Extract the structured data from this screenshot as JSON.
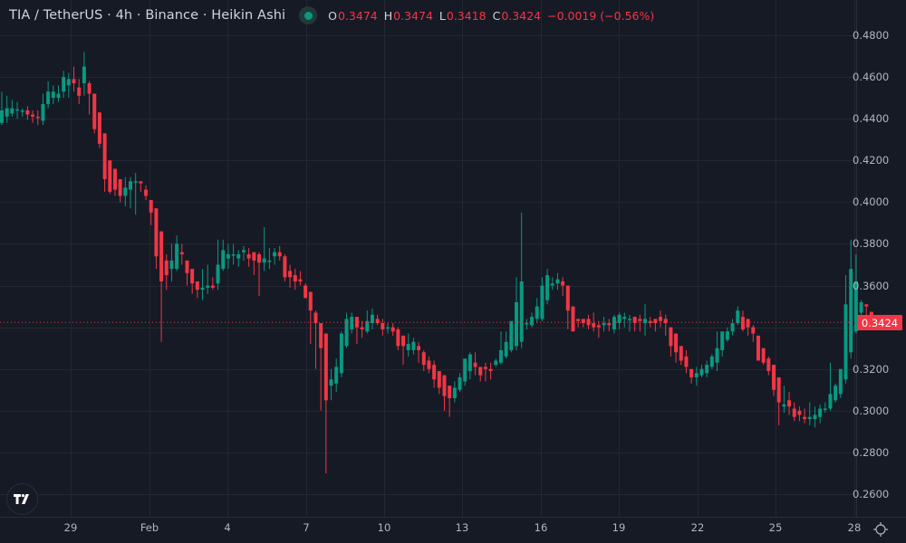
{
  "header": {
    "symbol_title": "TIA / TetherUS · 4h · Binance · Heikin Ashi",
    "status_icon": "market-open-dot-icon",
    "ohlc": {
      "open_label": "O",
      "open": "0.3474",
      "high_label": "H",
      "high": "0.3474",
      "low_label": "L",
      "low": "0.3418",
      "close_label": "C",
      "close": "0.3424",
      "change": "−0.0019 (−0.56%)"
    }
  },
  "price_axis": {
    "ticks": [
      "0.4800",
      "0.4600",
      "0.4400",
      "0.4200",
      "0.4000",
      "0.3800",
      "0.3600",
      "0.3200",
      "0.3000",
      "0.2800",
      "0.2600"
    ],
    "current_price_label": "0.3424"
  },
  "time_axis": {
    "ticks": [
      "29",
      "Feb",
      "4",
      "7",
      "10",
      "13",
      "16",
      "19",
      "22",
      "25",
      "28"
    ]
  },
  "footer": {
    "logo": "tradingview-logo-icon",
    "settings_icon": "gear-icon"
  },
  "colors": {
    "background": "#161a25",
    "grid": "#232733",
    "up": "#089981",
    "down": "#f23645",
    "text": "#d1d4dc",
    "axis_text": "#b2b5be"
  },
  "chart_data": {
    "type": "candlestick",
    "title": "TIA / TetherUS · 4h · Binance · Heikin Ashi",
    "xlabel": "",
    "ylabel": "",
    "ylim": [
      0.25,
      0.49
    ],
    "grid": true,
    "legend_position": "top-left",
    "x_ticks": [
      "29",
      "Feb",
      "4",
      "7",
      "10",
      "13",
      "16",
      "19",
      "22",
      "25",
      "28"
    ],
    "y_ticks": [
      0.26,
      0.28,
      0.3,
      0.32,
      0.34,
      0.36,
      0.38,
      0.4,
      0.42,
      0.44,
      0.46,
      0.48
    ],
    "last": {
      "open": 0.3474,
      "high": 0.3474,
      "low": 0.3418,
      "close": 0.3424,
      "change": -0.0019,
      "change_pct": -0.56
    },
    "candles_note": "Approximate OHLC read from the screenshot, not actual data: [open, high, low, close] per 4h bar, left to right. Per-bar values are estimates and only reproduce the overall price shape.",
    "candles_approx": [
      [
        0.438,
        0.453,
        0.437,
        0.444
      ],
      [
        0.441,
        0.451,
        0.438,
        0.445
      ],
      [
        0.4425,
        0.449,
        0.441,
        0.445
      ],
      [
        0.444,
        0.448,
        0.44,
        0.4445
      ],
      [
        0.444,
        0.445,
        0.441,
        0.444
      ],
      [
        0.444,
        0.446,
        0.4395,
        0.442
      ],
      [
        0.442,
        0.444,
        0.438,
        0.441
      ],
      [
        0.441,
        0.444,
        0.437,
        0.4405
      ],
      [
        0.439,
        0.452,
        0.437,
        0.447
      ],
      [
        0.447,
        0.458,
        0.445,
        0.453
      ],
      [
        0.45,
        0.456,
        0.447,
        0.453
      ],
      [
        0.45,
        0.456,
        0.448,
        0.452
      ],
      [
        0.453,
        0.463,
        0.45,
        0.46
      ],
      [
        0.456,
        0.462,
        0.45,
        0.459
      ],
      [
        0.459,
        0.465,
        0.453,
        0.457
      ],
      [
        0.455,
        0.459,
        0.447,
        0.451
      ],
      [
        0.457,
        0.472,
        0.451,
        0.465
      ],
      [
        0.457,
        0.458,
        0.442,
        0.452
      ],
      [
        0.452,
        0.452,
        0.433,
        0.435
      ],
      [
        0.443,
        0.443,
        0.426,
        0.428
      ],
      [
        0.433,
        0.433,
        0.405,
        0.411
      ],
      [
        0.42,
        0.42,
        0.404,
        0.405
      ],
      [
        0.416,
        0.416,
        0.403,
        0.406
      ],
      [
        0.411,
        0.411,
        0.4,
        0.403
      ],
      [
        0.403,
        0.412,
        0.398,
        0.407
      ],
      [
        0.406,
        0.412,
        0.397,
        0.41
      ],
      [
        0.41,
        0.414,
        0.394,
        0.41
      ],
      [
        0.41,
        0.41,
        0.405,
        0.409
      ],
      [
        0.406,
        0.408,
        0.401,
        0.403
      ],
      [
        0.401,
        0.401,
        0.389,
        0.395
      ],
      [
        0.397,
        0.397,
        0.368,
        0.374
      ],
      [
        0.386,
        0.386,
        0.333,
        0.362
      ],
      [
        0.372,
        0.375,
        0.358,
        0.365
      ],
      [
        0.368,
        0.38,
        0.362,
        0.372
      ],
      [
        0.368,
        0.384,
        0.367,
        0.38
      ],
      [
        0.376,
        0.38,
        0.37,
        0.375
      ],
      [
        0.372,
        0.372,
        0.36,
        0.366
      ],
      [
        0.368,
        0.368,
        0.356,
        0.361
      ],
      [
        0.362,
        0.362,
        0.354,
        0.358
      ],
      [
        0.358,
        0.368,
        0.353,
        0.359
      ],
      [
        0.359,
        0.37,
        0.356,
        0.36
      ],
      [
        0.36,
        0.364,
        0.358,
        0.359
      ],
      [
        0.361,
        0.382,
        0.358,
        0.37
      ],
      [
        0.368,
        0.382,
        0.367,
        0.377
      ],
      [
        0.373,
        0.38,
        0.368,
        0.375
      ],
      [
        0.375,
        0.38,
        0.37,
        0.375
      ],
      [
        0.373,
        0.377,
        0.369,
        0.375
      ],
      [
        0.376,
        0.379,
        0.372,
        0.377
      ],
      [
        0.375,
        0.378,
        0.369,
        0.373
      ],
      [
        0.376,
        0.376,
        0.365,
        0.372
      ],
      [
        0.375,
        0.376,
        0.355,
        0.371
      ],
      [
        0.371,
        0.388,
        0.367,
        0.373
      ],
      [
        0.372,
        0.378,
        0.368,
        0.372
      ],
      [
        0.374,
        0.378,
        0.37,
        0.376
      ],
      [
        0.376,
        0.379,
        0.372,
        0.374
      ],
      [
        0.374,
        0.375,
        0.362,
        0.364
      ],
      [
        0.367,
        0.37,
        0.359,
        0.364
      ],
      [
        0.365,
        0.368,
        0.358,
        0.362
      ],
      [
        0.363,
        0.367,
        0.36,
        0.362
      ],
      [
        0.36,
        0.361,
        0.354,
        0.354
      ],
      [
        0.357,
        0.357,
        0.332,
        0.348
      ],
      [
        0.347,
        0.348,
        0.32,
        0.342
      ],
      [
        0.342,
        0.342,
        0.3,
        0.33
      ],
      [
        0.337,
        0.337,
        0.27,
        0.305
      ],
      [
        0.312,
        0.32,
        0.305,
        0.315
      ],
      [
        0.313,
        0.325,
        0.309,
        0.321
      ],
      [
        0.318,
        0.338,
        0.316,
        0.337
      ],
      [
        0.331,
        0.347,
        0.33,
        0.344
      ],
      [
        0.339,
        0.347,
        0.337,
        0.345
      ],
      [
        0.345,
        0.345,
        0.332,
        0.34
      ],
      [
        0.34,
        0.343,
        0.335,
        0.339
      ],
      [
        0.338,
        0.348,
        0.337,
        0.343
      ],
      [
        0.342,
        0.349,
        0.339,
        0.346
      ],
      [
        0.344,
        0.346,
        0.341,
        0.342
      ],
      [
        0.342,
        0.344,
        0.336,
        0.339
      ],
      [
        0.34,
        0.342,
        0.337,
        0.34
      ],
      [
        0.34,
        0.342,
        0.336,
        0.338
      ],
      [
        0.339,
        0.34,
        0.329,
        0.331
      ],
      [
        0.336,
        0.336,
        0.322,
        0.331
      ],
      [
        0.329,
        0.337,
        0.326,
        0.332
      ],
      [
        0.329,
        0.335,
        0.327,
        0.333
      ],
      [
        0.331,
        0.333,
        0.323,
        0.329
      ],
      [
        0.328,
        0.329,
        0.319,
        0.322
      ],
      [
        0.324,
        0.326,
        0.318,
        0.32
      ],
      [
        0.322,
        0.324,
        0.311,
        0.315
      ],
      [
        0.319,
        0.319,
        0.308,
        0.311
      ],
      [
        0.317,
        0.317,
        0.3,
        0.307
      ],
      [
        0.312,
        0.312,
        0.297,
        0.306
      ],
      [
        0.306,
        0.314,
        0.304,
        0.311
      ],
      [
        0.31,
        0.318,
        0.309,
        0.316
      ],
      [
        0.314,
        0.324,
        0.312,
        0.325
      ],
      [
        0.319,
        0.328,
        0.315,
        0.327
      ],
      [
        0.323,
        0.328,
        0.317,
        0.321
      ],
      [
        0.321,
        0.321,
        0.314,
        0.317
      ],
      [
        0.321,
        0.323,
        0.314,
        0.32
      ],
      [
        0.32,
        0.323,
        0.315,
        0.319
      ],
      [
        0.322,
        0.325,
        0.321,
        0.324
      ],
      [
        0.323,
        0.338,
        0.322,
        0.329
      ],
      [
        0.326,
        0.338,
        0.325,
        0.333
      ],
      [
        0.329,
        0.342,
        0.328,
        0.343
      ],
      [
        0.331,
        0.364,
        0.329,
        0.352
      ],
      [
        0.333,
        0.395,
        0.33,
        0.362
      ],
      [
        0.342,
        0.344,
        0.339,
        0.342
      ],
      [
        0.341,
        0.347,
        0.34,
        0.345
      ],
      [
        0.344,
        0.354,
        0.342,
        0.35
      ],
      [
        0.344,
        0.364,
        0.343,
        0.36
      ],
      [
        0.353,
        0.368,
        0.351,
        0.365
      ],
      [
        0.36,
        0.364,
        0.358,
        0.361
      ],
      [
        0.361,
        0.366,
        0.358,
        0.363
      ],
      [
        0.362,
        0.364,
        0.355,
        0.36
      ],
      [
        0.36,
        0.36,
        0.339,
        0.348
      ],
      [
        0.35,
        0.35,
        0.338,
        0.338
      ],
      [
        0.344,
        0.344,
        0.34,
        0.343
      ],
      [
        0.344,
        0.344,
        0.34,
        0.342
      ],
      [
        0.344,
        0.346,
        0.339,
        0.341
      ],
      [
        0.342,
        0.347,
        0.338,
        0.34
      ],
      [
        0.341,
        0.343,
        0.335,
        0.34
      ],
      [
        0.341,
        0.345,
        0.338,
        0.342
      ],
      [
        0.342,
        0.344,
        0.338,
        0.341
      ],
      [
        0.339,
        0.346,
        0.337,
        0.345
      ],
      [
        0.342,
        0.347,
        0.339,
        0.346
      ],
      [
        0.344,
        0.347,
        0.34,
        0.345
      ],
      [
        0.344,
        0.346,
        0.338,
        0.344
      ],
      [
        0.345,
        0.345,
        0.338,
        0.342
      ],
      [
        0.344,
        0.346,
        0.338,
        0.343
      ],
      [
        0.342,
        0.351,
        0.336,
        0.344
      ],
      [
        0.343,
        0.345,
        0.34,
        0.342
      ],
      [
        0.344,
        0.344,
        0.338,
        0.342
      ],
      [
        0.345,
        0.348,
        0.34,
        0.343
      ],
      [
        0.344,
        0.346,
        0.336,
        0.342
      ],
      [
        0.34,
        0.34,
        0.326,
        0.331
      ],
      [
        0.337,
        0.337,
        0.323,
        0.328
      ],
      [
        0.331,
        0.331,
        0.322,
        0.324
      ],
      [
        0.326,
        0.329,
        0.318,
        0.321
      ],
      [
        0.32,
        0.32,
        0.313,
        0.316
      ],
      [
        0.316,
        0.321,
        0.312,
        0.318
      ],
      [
        0.317,
        0.322,
        0.316,
        0.32
      ],
      [
        0.318,
        0.324,
        0.316,
        0.322
      ],
      [
        0.321,
        0.327,
        0.32,
        0.326
      ],
      [
        0.323,
        0.338,
        0.319,
        0.33
      ],
      [
        0.329,
        0.336,
        0.326,
        0.338
      ],
      [
        0.334,
        0.34,
        0.333,
        0.338
      ],
      [
        0.338,
        0.344,
        0.336,
        0.342
      ],
      [
        0.342,
        0.35,
        0.341,
        0.348
      ],
      [
        0.345,
        0.348,
        0.338,
        0.339
      ],
      [
        0.344,
        0.344,
        0.336,
        0.34
      ],
      [
        0.34,
        0.341,
        0.333,
        0.337
      ],
      [
        0.336,
        0.336,
        0.326,
        0.324
      ],
      [
        0.33,
        0.33,
        0.322,
        0.323
      ],
      [
        0.325,
        0.326,
        0.317,
        0.319
      ],
      [
        0.322,
        0.322,
        0.307,
        0.31
      ],
      [
        0.316,
        0.316,
        0.293,
        0.304
      ],
      [
        0.302,
        0.312,
        0.299,
        0.303
      ],
      [
        0.305,
        0.309,
        0.298,
        0.302
      ],
      [
        0.301,
        0.304,
        0.295,
        0.297
      ],
      [
        0.3,
        0.302,
        0.295,
        0.298
      ],
      [
        0.297,
        0.301,
        0.294,
        0.296
      ],
      [
        0.296,
        0.304,
        0.293,
        0.297
      ],
      [
        0.296,
        0.302,
        0.292,
        0.298
      ],
      [
        0.297,
        0.303,
        0.294,
        0.301
      ],
      [
        0.301,
        0.304,
        0.299,
        0.301
      ],
      [
        0.301,
        0.323,
        0.3,
        0.308
      ],
      [
        0.305,
        0.313,
        0.304,
        0.312
      ],
      [
        0.308,
        0.318,
        0.306,
        0.32
      ],
      [
        0.315,
        0.365,
        0.313,
        0.351
      ],
      [
        0.328,
        0.382,
        0.325,
        0.368
      ],
      [
        0.338,
        0.375,
        0.337,
        0.362
      ],
      [
        0.347,
        0.353,
        0.342,
        0.352
      ],
      [
        0.351,
        0.351,
        0.343,
        0.35
      ],
      [
        0.3474,
        0.3474,
        0.3418,
        0.3424
      ]
    ]
  }
}
